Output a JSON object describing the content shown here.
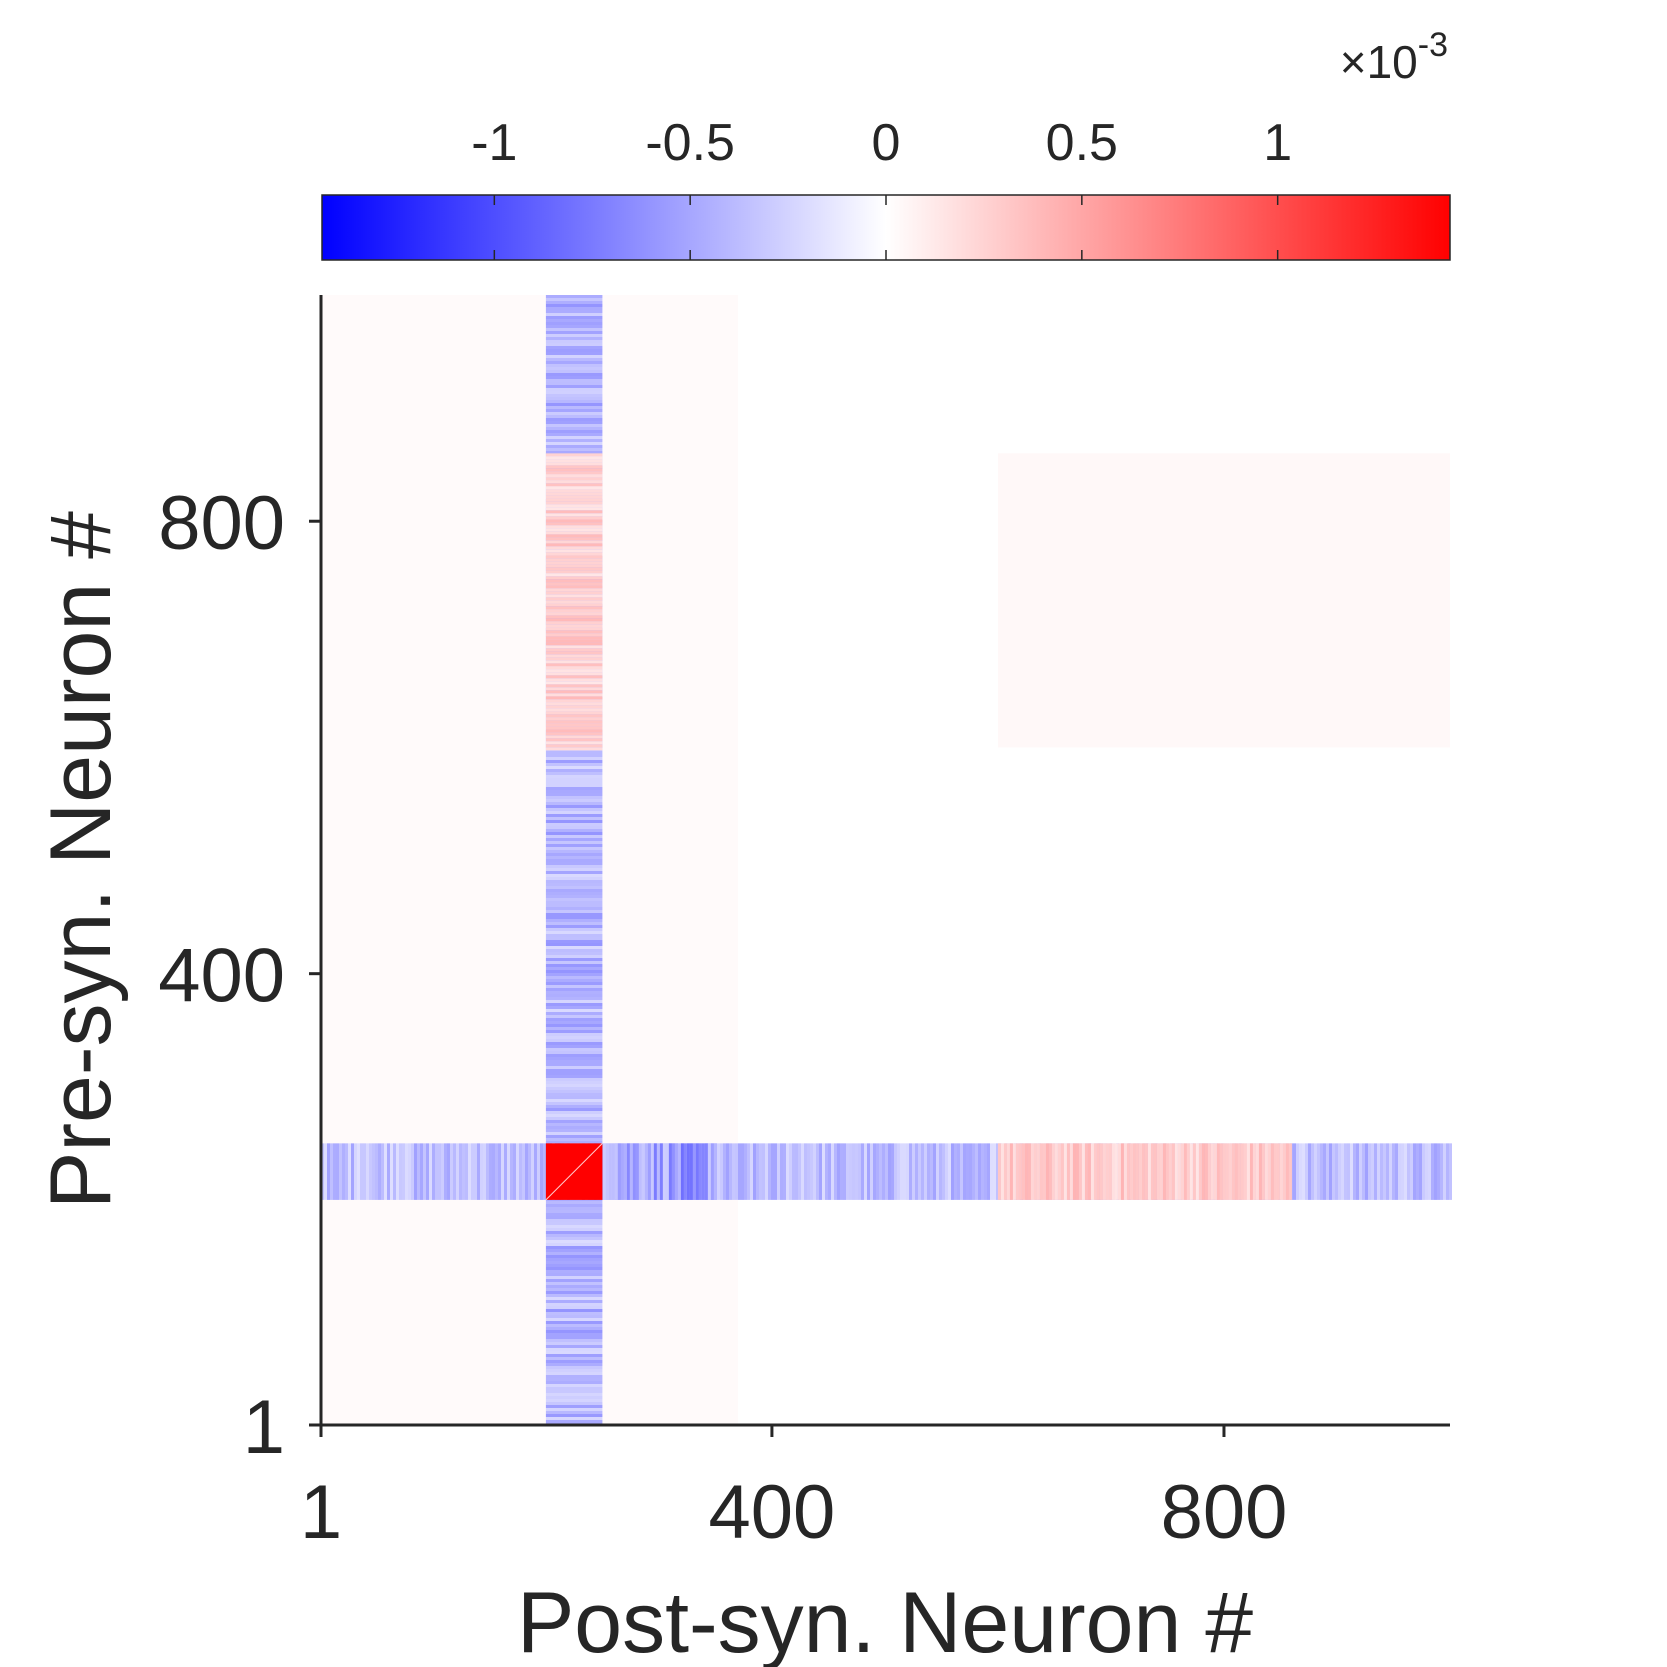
{
  "chart_data": {
    "type": "heatmap",
    "title": "",
    "xlabel": "Post-syn. Neuron #",
    "ylabel": "Pre-syn. Neuron #",
    "xlim": [
      1,
      1000
    ],
    "ylim": [
      1,
      1000
    ],
    "x_ticks": [
      1,
      400,
      800
    ],
    "y_ticks": [
      1,
      400,
      800
    ],
    "x_tick_labels": [
      "1",
      "400",
      "800"
    ],
    "y_tick_labels": [
      "1",
      "400",
      "800"
    ],
    "colormap": {
      "name": "blue-white-red",
      "low_color": "#0000ff",
      "mid_color": "#ffffff",
      "high_color": "#ff0000",
      "clim": [
        -0.00144,
        0.00144
      ]
    },
    "colorbar": {
      "location": "top",
      "ticks": [
        -0.001,
        -0.0005,
        0,
        0.0005,
        0.001
      ],
      "tick_labels": [
        "-1",
        "-0.5",
        "0",
        "0.5",
        "1"
      ],
      "exponent_prefix": "×10",
      "exponent_power": "-3"
    },
    "features": [
      {
        "kind": "block",
        "x": [
          200,
          250
        ],
        "y": [
          200,
          250
        ],
        "value": 0.0015
      },
      {
        "kind": "column",
        "x": [
          200,
          250
        ],
        "y": [
          1,
          1000
        ],
        "value": -0.00045
      },
      {
        "kind": "column",
        "x": [
          200,
          250
        ],
        "y": [
          600,
          860
        ],
        "value": 0.0003
      },
      {
        "kind": "row",
        "x": [
          1,
          1000
        ],
        "y": [
          200,
          250
        ],
        "value": -0.0004
      },
      {
        "kind": "row",
        "x": [
          200,
          350
        ],
        "y": [
          200,
          250
        ],
        "value": -0.0006
      },
      {
        "kind": "row",
        "x": [
          600,
          860
        ],
        "y": [
          200,
          250
        ],
        "value": 0.00032
      },
      {
        "kind": "background",
        "x": [
          1,
          370
        ],
        "y": [
          1,
          1000
        ],
        "value": 3e-05
      },
      {
        "kind": "background",
        "x": [
          600,
          1000
        ],
        "y": [
          600,
          860
        ],
        "value": 4e-05
      }
    ]
  }
}
